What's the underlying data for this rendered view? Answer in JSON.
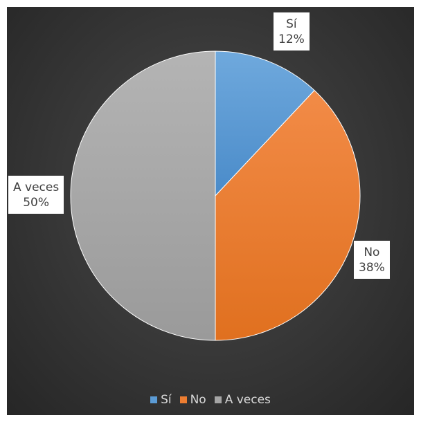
{
  "chart_data": {
    "type": "pie",
    "title": "",
    "categories": [
      "Sí",
      "No",
      "A veces"
    ],
    "values": [
      12,
      38,
      50
    ],
    "labels": [
      "12%",
      "38%",
      "50%"
    ],
    "colors": [
      "#5B9BD5",
      "#ED7D31",
      "#A5A5A5"
    ],
    "legend_position": "bottom",
    "start_angle_deg": 0,
    "direction": "clockwise"
  }
}
